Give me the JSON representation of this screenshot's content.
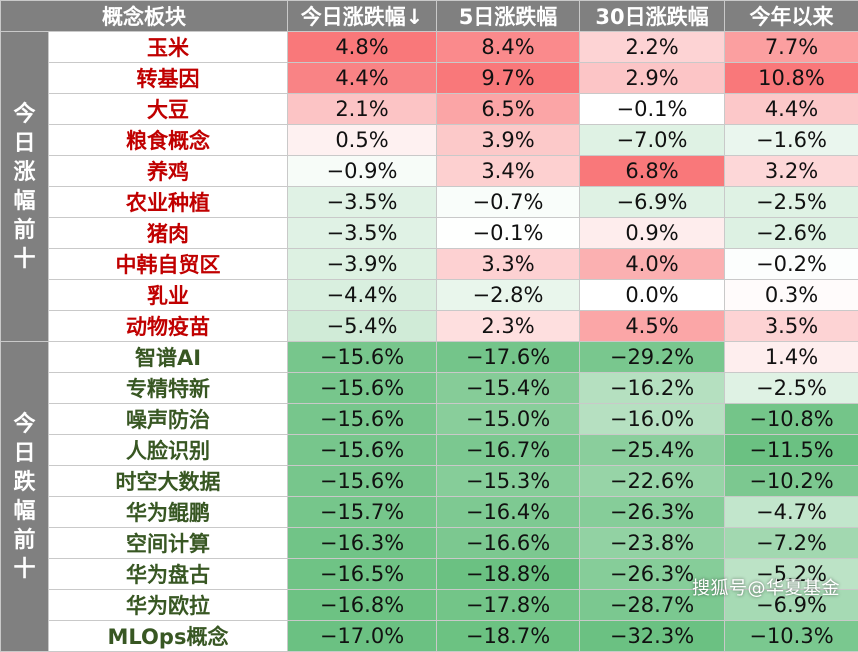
{
  "headers": [
    "概念板块",
    "今日涨跌幅↓",
    "5日涨跌幅",
    "30日涨跌幅",
    "今年以来"
  ],
  "groups": [
    {
      "label": "今日涨幅前十",
      "type": "up",
      "rows": [
        {
          "name": "玉米",
          "values": [
            "4.8%",
            "8.4%",
            "2.2%",
            "7.7%"
          ]
        },
        {
          "name": "转基因",
          "values": [
            "4.4%",
            "9.7%",
            "2.9%",
            "10.8%"
          ]
        },
        {
          "name": "大豆",
          "values": [
            "2.1%",
            "6.5%",
            "−0.1%",
            "4.4%"
          ]
        },
        {
          "name": "粮食概念",
          "values": [
            "0.5%",
            "3.9%",
            "−7.0%",
            "−1.6%"
          ]
        },
        {
          "name": "养鸡",
          "values": [
            "−0.9%",
            "3.4%",
            "6.8%",
            "3.2%"
          ]
        },
        {
          "name": "农业种植",
          "values": [
            "−3.5%",
            "−0.7%",
            "−6.9%",
            "−2.5%"
          ]
        },
        {
          "name": "猪肉",
          "values": [
            "−3.5%",
            "−0.1%",
            "0.9%",
            "−2.6%"
          ]
        },
        {
          "name": "中韩自贸区",
          "values": [
            "−3.9%",
            "3.3%",
            "4.0%",
            "−0.2%"
          ]
        },
        {
          "name": "乳业",
          "values": [
            "−4.4%",
            "−2.8%",
            "0.0%",
            "0.3%"
          ]
        },
        {
          "name": "动物疫苗",
          "values": [
            "−5.4%",
            "2.3%",
            "4.5%",
            "3.5%"
          ]
        }
      ]
    },
    {
      "label": "今日跌幅前十",
      "type": "down",
      "rows": [
        {
          "name": "智谱AI",
          "values": [
            "−15.6%",
            "−17.6%",
            "−29.2%",
            "1.4%"
          ]
        },
        {
          "name": "专精特新",
          "values": [
            "−15.6%",
            "−15.4%",
            "−16.2%",
            "−2.5%"
          ]
        },
        {
          "name": "噪声防治",
          "values": [
            "−15.6%",
            "−15.0%",
            "−16.0%",
            "−10.8%"
          ]
        },
        {
          "name": "人脸识别",
          "values": [
            "−15.6%",
            "−16.7%",
            "−25.4%",
            "−11.5%"
          ]
        },
        {
          "name": "时空大数据",
          "values": [
            "−15.6%",
            "−15.3%",
            "−22.6%",
            "−10.2%"
          ]
        },
        {
          "name": "华为鲲鹏",
          "values": [
            "−15.7%",
            "−16.4%",
            "−26.3%",
            "−4.7%"
          ]
        },
        {
          "name": "空间计算",
          "values": [
            "−16.3%",
            "−16.6%",
            "−23.8%",
            "−7.2%"
          ]
        },
        {
          "name": "华为盘古",
          "values": [
            "−16.5%",
            "−18.8%",
            "−26.3%",
            "−5.2%"
          ]
        },
        {
          "name": "华为欧拉",
          "values": [
            "−16.8%",
            "−17.8%",
            "−28.7%",
            "−6.9%"
          ]
        },
        {
          "name": "MLOps概念",
          "values": [
            "−17.0%",
            "−18.7%",
            "−32.3%",
            "−10.3%"
          ]
        }
      ]
    }
  ],
  "watermark": "搜狐号@华夏基金",
  "colors": {
    "header_bg": "#808080",
    "up_name": "#c00000",
    "down_name": "#385723",
    "pos_max": "#f8696b",
    "neg_max": "#63be7b"
  }
}
